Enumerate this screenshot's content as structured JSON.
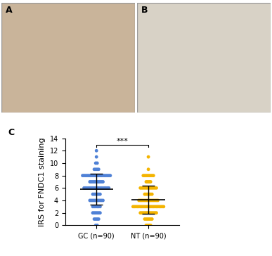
{
  "panel_labels": [
    "A",
    "B",
    "C"
  ],
  "chart_data": {
    "type": "scatter",
    "ylabel": "IRS for FNDC1 staining",
    "categories": [
      "GC (n=90)",
      "NT (n=90)"
    ],
    "colors": [
      "#4f81d6",
      "#f4b400"
    ],
    "values": [
      [
        12,
        11,
        10,
        10,
        9,
        9,
        9,
        9,
        8,
        8,
        8,
        8,
        8,
        8,
        8,
        8,
        8,
        8,
        8,
        8,
        8,
        8,
        8,
        8,
        8,
        8,
        8,
        8,
        7,
        7,
        7,
        7,
        7,
        7,
        7,
        7,
        7,
        7,
        6,
        6,
        6,
        6,
        6,
        6,
        6,
        6,
        6,
        6,
        6,
        6,
        6,
        6,
        6,
        6,
        6,
        6,
        5,
        5,
        5,
        5,
        5,
        5,
        4,
        4,
        4,
        4,
        4,
        4,
        4,
        4,
        4,
        4,
        3,
        3,
        3,
        3,
        3,
        3,
        2,
        2,
        2,
        2,
        2,
        2,
        1,
        1,
        1,
        1,
        0,
        0
      ],
      [
        11,
        9,
        8,
        8,
        8,
        8,
        8,
        8,
        8,
        8,
        7,
        7,
        7,
        7,
        6,
        6,
        6,
        6,
        6,
        6,
        6,
        6,
        6,
        6,
        6,
        6,
        5,
        5,
        5,
        5,
        5,
        5,
        4,
        4,
        4,
        4,
        4,
        4,
        4,
        4,
        4,
        4,
        4,
        4,
        4,
        4,
        3,
        3,
        3,
        3,
        3,
        3,
        3,
        3,
        3,
        3,
        3,
        3,
        3,
        3,
        3,
        3,
        3,
        3,
        3,
        3,
        3,
        3,
        2,
        2,
        2,
        2,
        2,
        2,
        2,
        2,
        2,
        2,
        2,
        2,
        1,
        1,
        1,
        1,
        1,
        1,
        0,
        0,
        0,
        0
      ]
    ],
    "mean": [
      5.8,
      4.1
    ],
    "sd": [
      2.5,
      2.3
    ],
    "annotation": "***",
    "ylim": [
      0,
      14
    ],
    "yticks": [
      0,
      2,
      4,
      6,
      8,
      10,
      12,
      14
    ]
  }
}
